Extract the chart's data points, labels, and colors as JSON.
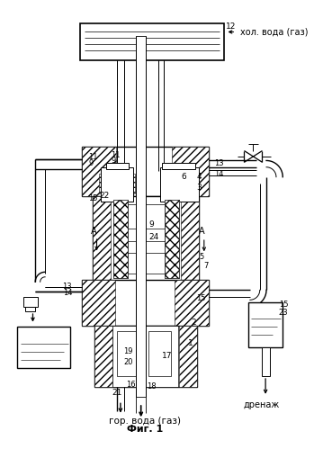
{
  "fig_label": "Фиг. 1",
  "top_label": "хол. вода (газ)",
  "bottom_label": "гор. вода (газ)",
  "right_label": "дренаж",
  "bg_color": "#ffffff"
}
